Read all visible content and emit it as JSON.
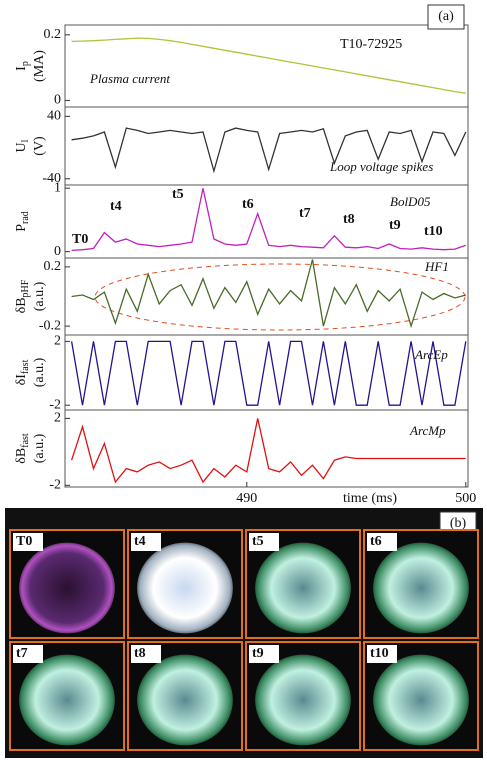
{
  "chart_data": [
    {
      "type": "line",
      "x": [
        482,
        482.5,
        483,
        483.5,
        484,
        484.5,
        485,
        485.5,
        486,
        486.5,
        487,
        487.5,
        488,
        488.5,
        489,
        489.5,
        490,
        490.5,
        491,
        491.5,
        492,
        492.5,
        493,
        493.5,
        494,
        494.5,
        495,
        495.5,
        496,
        496.5,
        497,
        497.5,
        498,
        498.5,
        499,
        499.5,
        500
      ],
      "xlim": [
        481.7,
        500.1
      ],
      "ylim": [
        -0.02,
        0.23
      ],
      "yticks": [
        0,
        0.2
      ],
      "ylabel": {
        "main": "I",
        "sub": "p",
        "unit": "(MA)"
      },
      "series": [
        {
          "color": "#b5c23a",
          "values": [
            0.18,
            0.181,
            0.182,
            0.184,
            0.186,
            0.188,
            0.19,
            0.189,
            0.186,
            0.182,
            0.177,
            0.171,
            0.165,
            0.159,
            0.153,
            0.147,
            0.141,
            0.135,
            0.129,
            0.123,
            0.117,
            0.111,
            0.105,
            0.099,
            0.093,
            0.087,
            0.081,
            0.075,
            0.069,
            0.063,
            0.057,
            0.051,
            0.045,
            0.039,
            0.033,
            0.027,
            0.022
          ]
        }
      ],
      "annotations": [
        "T10-72925",
        "Plasma current"
      ]
    },
    {
      "type": "line",
      "x": [
        482,
        482.5,
        483,
        483.5,
        484,
        484.5,
        485,
        485.5,
        486,
        486.5,
        487,
        487.5,
        488,
        488.5,
        489,
        489.5,
        490,
        490.5,
        491,
        491.5,
        492,
        492.5,
        493,
        493.5,
        494,
        494.5,
        495,
        495.5,
        496,
        496.5,
        497,
        497.5,
        498,
        498.5,
        499,
        499.5,
        500
      ],
      "xlim": [
        481.7,
        500.1
      ],
      "ylim": [
        -48,
        52
      ],
      "yticks": [
        40,
        -40
      ],
      "ylabel": {
        "main": "U",
        "sub": "l",
        "unit": "(V)"
      },
      "series": [
        {
          "color": "#333333",
          "values": [
            10,
            12,
            15,
            20,
            -25,
            25,
            22,
            18,
            20,
            22,
            20,
            18,
            20,
            -30,
            20,
            25,
            22,
            20,
            -28,
            18,
            20,
            22,
            20,
            24,
            -20,
            15,
            20,
            22,
            -15,
            20,
            18,
            22,
            -18,
            20,
            18,
            -10,
            20
          ]
        }
      ],
      "annotations": [
        "Loop voltage spikes"
      ]
    },
    {
      "type": "line",
      "x": [
        482,
        482.5,
        483,
        483.5,
        484,
        484.5,
        485,
        485.5,
        486,
        486.5,
        487,
        487.5,
        488,
        488.5,
        489,
        489.5,
        490,
        490.5,
        491,
        491.5,
        492,
        492.5,
        493,
        493.5,
        494,
        494.5,
        495,
        495.5,
        496,
        496.5,
        497,
        497.5,
        498,
        498.5,
        499,
        499.5,
        500
      ],
      "xlim": [
        481.7,
        500.1
      ],
      "ylim": [
        -0.1,
        1.05
      ],
      "yticks": [
        1,
        0
      ],
      "ylabel": {
        "main": "P",
        "sub": "rad"
      },
      "series": [
        {
          "color": "#c020c0",
          "values": [
            0.02,
            0.03,
            0.05,
            0.3,
            0.15,
            0.2,
            0.12,
            0.1,
            0.08,
            0.1,
            0.12,
            0.15,
            1.0,
            0.2,
            0.12,
            0.1,
            0.12,
            0.6,
            0.1,
            0.08,
            0.1,
            0.08,
            0.07,
            0.06,
            0.25,
            0.07,
            0.06,
            0.08,
            0.05,
            0.12,
            0.05,
            0.04,
            0.06,
            0.04,
            0.03,
            0.04,
            0.1
          ]
        }
      ],
      "annotations": [
        "BolD05",
        "T0",
        "t4",
        "t5",
        "t6",
        "t7",
        "t8",
        "t9",
        "t10"
      ]
    },
    {
      "type": "line",
      "x": [
        482,
        482.5,
        483,
        483.5,
        484,
        484.5,
        485,
        485.5,
        486,
        486.5,
        487,
        487.5,
        488,
        488.5,
        489,
        489.5,
        490,
        490.5,
        491,
        491.5,
        492,
        492.5,
        493,
        493.5,
        494,
        494.5,
        495,
        495.5,
        496,
        496.5,
        497,
        497.5,
        498,
        498.5,
        499,
        499.5,
        500
      ],
      "xlim": [
        481.7,
        500.1
      ],
      "ylim": [
        -0.26,
        0.26
      ],
      "yticks": [
        0.2,
        -0.2
      ],
      "ylabel": {
        "main": "δB",
        "sub": "pHF",
        "unit": "(a.u.)"
      },
      "series": [
        {
          "color": "#4a6a2a",
          "values": [
            0,
            0.01,
            -0.02,
            0.03,
            -0.18,
            0.05,
            -0.1,
            0.15,
            -0.05,
            0.04,
            0.08,
            -0.06,
            0.12,
            -0.08,
            0.06,
            -0.04,
            0.1,
            -0.12,
            0.05,
            -0.05,
            0.04,
            -0.03,
            0.25,
            -0.2,
            0.06,
            -0.05,
            0.08,
            -0.1,
            0.04,
            -0.03,
            0.05,
            -0.2,
            0.03,
            -0.02,
            0.02,
            -0.01,
            0.01
          ]
        }
      ],
      "annotations": [
        "HF1"
      ]
    },
    {
      "type": "line",
      "x": [
        482,
        482.5,
        483,
        483.5,
        484,
        484.5,
        485,
        485.5,
        486,
        486.5,
        487,
        487.5,
        488,
        488.5,
        489,
        489.5,
        490,
        490.5,
        491,
        491.5,
        492,
        492.5,
        493,
        493.5,
        494,
        494.5,
        495,
        495.5,
        496,
        496.5,
        497,
        497.5,
        498,
        498.5,
        499,
        499.5,
        500
      ],
      "xlim": [
        481.7,
        500.1
      ],
      "ylim": [
        -2.3,
        2.4
      ],
      "yticks": [
        2,
        -2
      ],
      "ylabel": {
        "main": "δI",
        "sub": "fast",
        "unit": "(a.u.)"
      },
      "series": [
        {
          "color": "#2a1090",
          "values": [
            2,
            -2,
            2,
            -2,
            2,
            2,
            -2,
            2,
            2,
            2,
            -2,
            2,
            2,
            -2,
            2,
            2,
            -2,
            -2,
            2,
            -2,
            2,
            2,
            -2,
            2,
            -2,
            2,
            -2,
            -2,
            2,
            -2,
            -2,
            2,
            -2,
            2,
            -2,
            -2,
            2
          ]
        }
      ],
      "annotations": [
        "ArcEp"
      ]
    },
    {
      "type": "line",
      "x": [
        482,
        482.5,
        483,
        483.5,
        484,
        484.5,
        485,
        485.5,
        486,
        486.5,
        487,
        487.5,
        488,
        488.5,
        489,
        489.5,
        490,
        490.5,
        491,
        491.5,
        492,
        492.5,
        493,
        493.5,
        494,
        494.5,
        495,
        495.5,
        496,
        496.5,
        497,
        497.5,
        498,
        498.5,
        499,
        499.5,
        500
      ],
      "xlim": [
        481.7,
        500.1
      ],
      "ylim": [
        -2.1,
        2.5
      ],
      "yticks": [
        2,
        -2
      ],
      "xticks": [
        490,
        500
      ],
      "xlabel": "time (ms)",
      "ylabel": {
        "main": "δB",
        "sub": "fast",
        "unit": "(a.u.)"
      },
      "series": [
        {
          "color": "#e01010",
          "values": [
            -0.5,
            1.5,
            -1,
            0.5,
            -1.8,
            -1,
            -1.2,
            -0.8,
            -0.6,
            -1,
            -0.8,
            -0.5,
            -1.8,
            -1,
            -1.5,
            -0.8,
            -1.2,
            2,
            -1,
            -1.2,
            -0.6,
            -1.4,
            -0.8,
            -1.6,
            -0.5,
            -0.3,
            -0.4,
            -0.4,
            -0.4,
            -0.4,
            -0.4,
            -0.4,
            -0.4,
            -0.4,
            -0.4,
            -0.4,
            -0.4
          ]
        }
      ],
      "annotations": [
        "ArcMp"
      ]
    }
  ],
  "panel_labels": [
    "(a)",
    "(b)"
  ],
  "photos": [
    "T0",
    "t4",
    "t5",
    "t6",
    "t7",
    "t8",
    "t9",
    "t10"
  ]
}
